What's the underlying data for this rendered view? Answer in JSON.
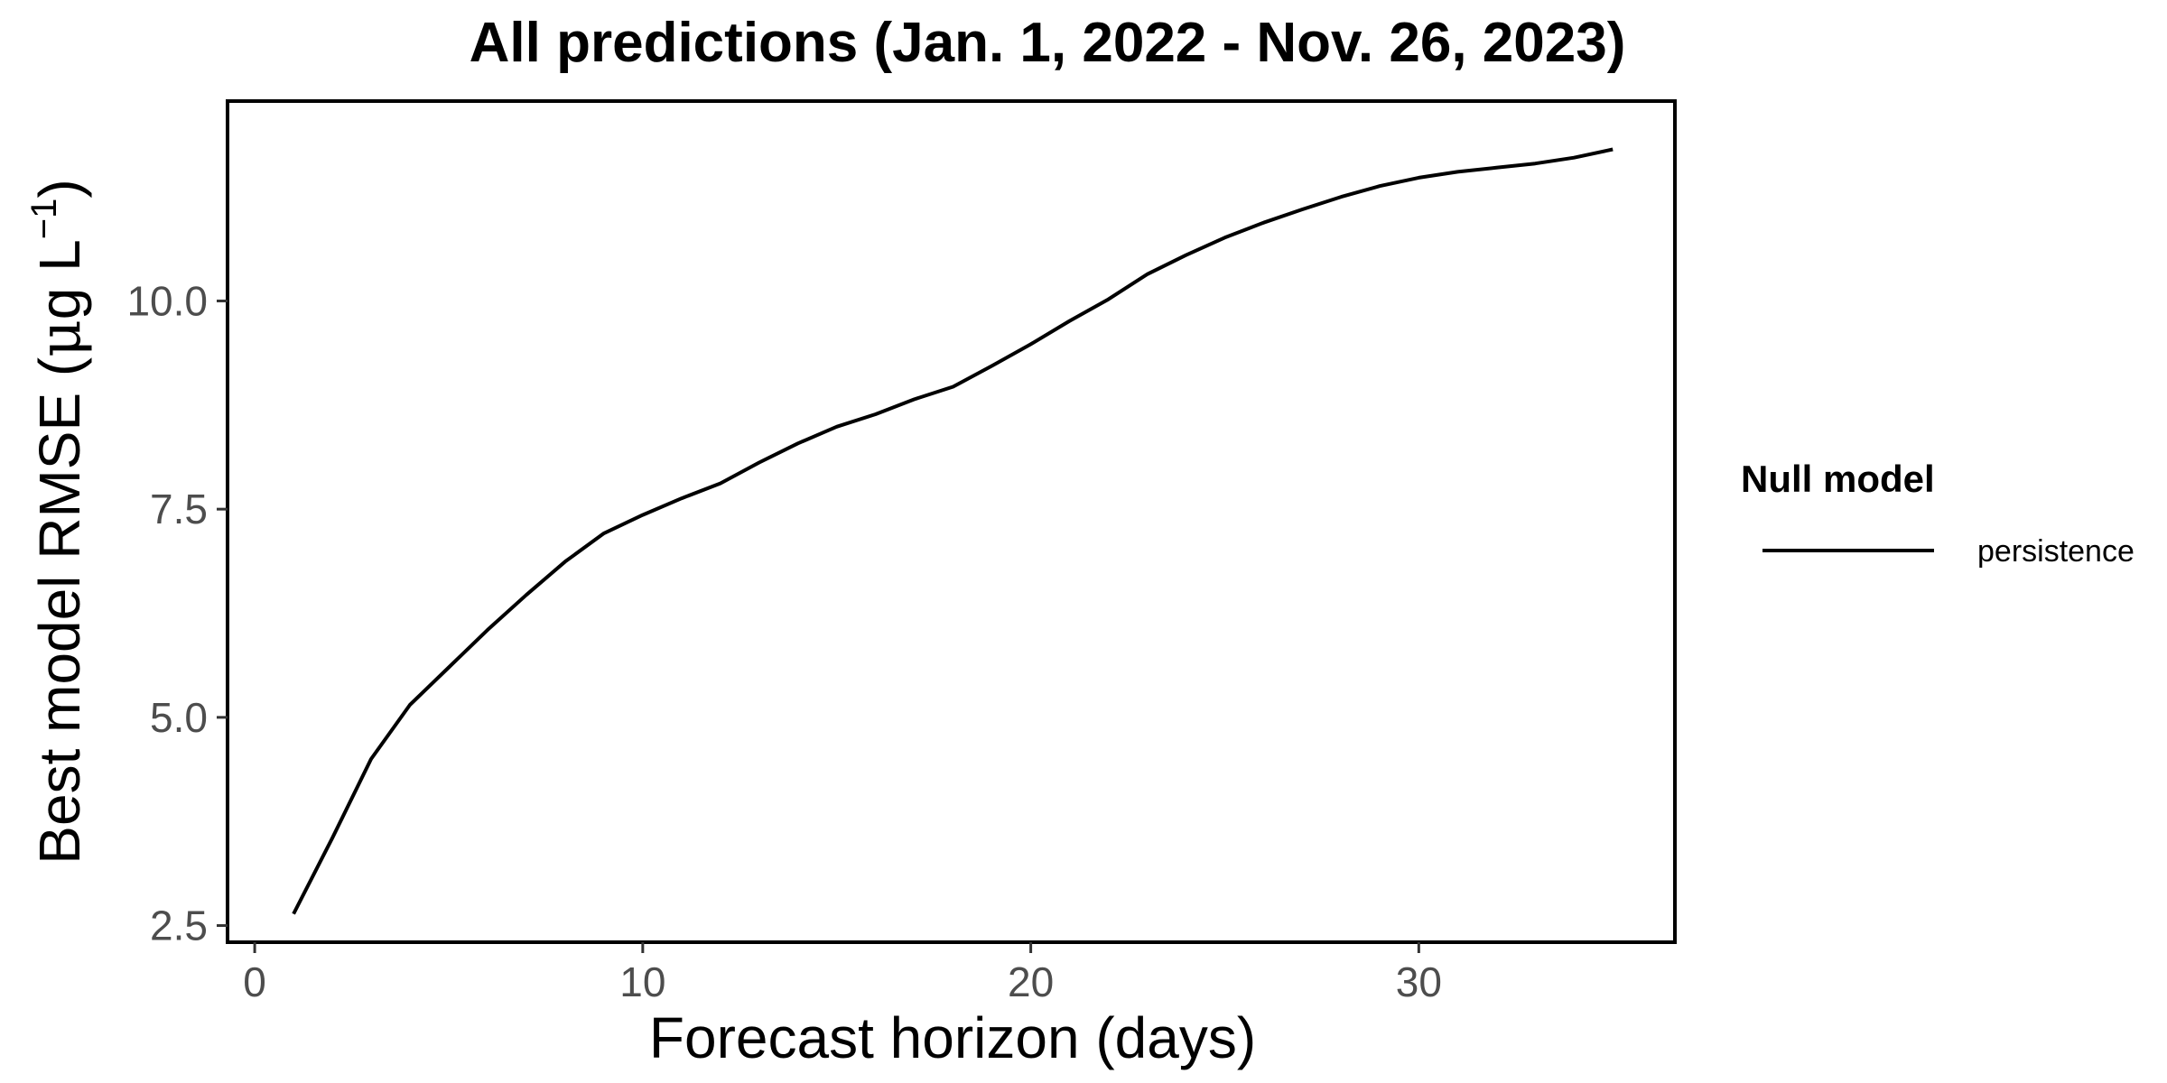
{
  "chart_data": {
    "type": "line",
    "title": "All predictions (Jan. 1, 2022 - Nov. 26, 2023)",
    "xlabel": "Forecast horizon (days)",
    "ylabel": {
      "main": "Best model RMSE (",
      "mu": "μ",
      "unit": "g L",
      "sup": "−1",
      "close": ")"
    },
    "xlim": [
      -0.7,
      36.6
    ],
    "ylim": [
      2.3,
      12.4
    ],
    "x_ticks": [
      0,
      10,
      20,
      30
    ],
    "x_tick_labels": [
      "0",
      "10",
      "20",
      "30"
    ],
    "y_ticks": [
      2.5,
      5.0,
      7.5,
      10.0
    ],
    "y_tick_labels": [
      "2.5",
      "5.0",
      "7.5",
      "10.0"
    ],
    "grid": false,
    "legend": {
      "title": "Null model",
      "placement": "right"
    },
    "series": [
      {
        "name": "persistence",
        "color": "#000000",
        "x": [
          1,
          2,
          3,
          4,
          5,
          6,
          7,
          8,
          9,
          10,
          11,
          12,
          13,
          14,
          15,
          16,
          17,
          18,
          19,
          20,
          21,
          22,
          23,
          24,
          25,
          26,
          27,
          28,
          29,
          30,
          31,
          32,
          33,
          34,
          35
        ],
        "y": [
          2.64,
          3.55,
          4.5,
          5.15,
          5.6,
          6.05,
          6.47,
          6.87,
          7.21,
          7.43,
          7.63,
          7.81,
          8.06,
          8.29,
          8.49,
          8.64,
          8.82,
          8.97,
          9.22,
          9.48,
          9.76,
          10.02,
          10.32,
          10.55,
          10.76,
          10.94,
          11.1,
          11.25,
          11.38,
          11.48,
          11.55,
          11.6,
          11.65,
          11.72,
          11.82
        ]
      }
    ]
  }
}
